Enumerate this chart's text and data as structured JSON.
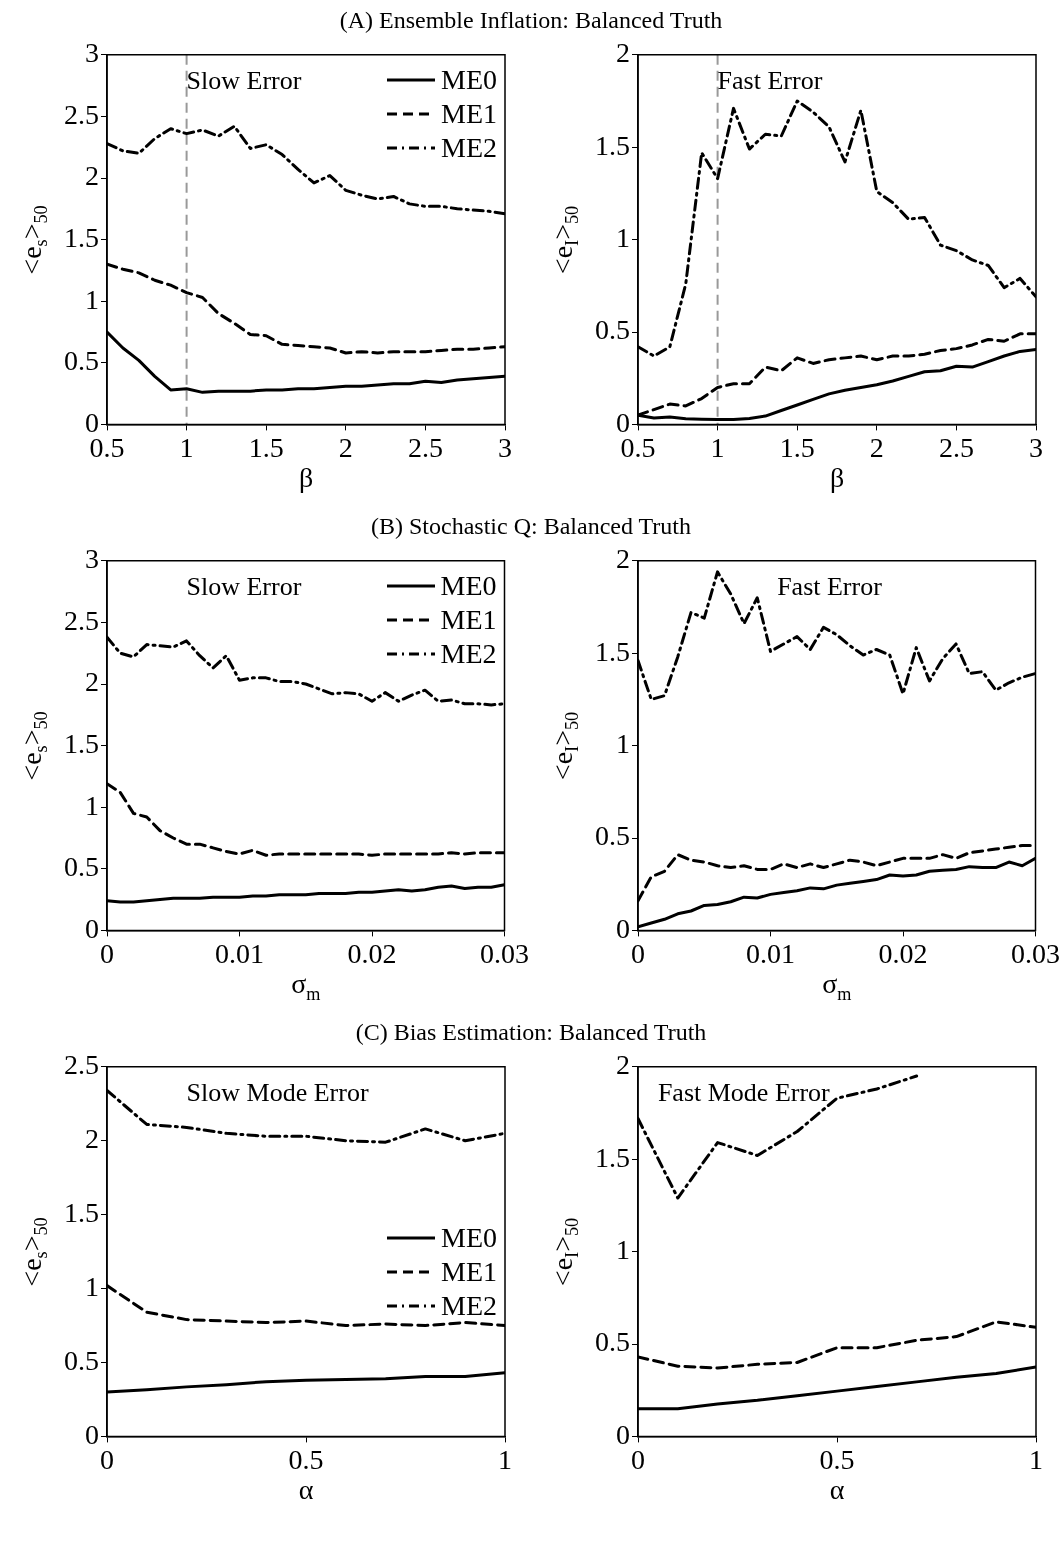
{
  "chart_data": [
    {
      "type": "line",
      "title": "(A) Ensemble Inflation: Balanced Truth",
      "xlabel": "β",
      "ylabel": "<e$_{s}$>$_{50}$",
      "annotations": [
        "Slow Error"
      ],
      "legend": "top right",
      "grid": false,
      "x": [
        0.5,
        0.6,
        0.7,
        0.8,
        0.9,
        1.0,
        1.1,
        1.2,
        1.3,
        1.4,
        1.5,
        1.6,
        1.7,
        1.8,
        1.9,
        2.0,
        2.1,
        2.2,
        2.3,
        2.4,
        2.5,
        2.6,
        2.7,
        2.8,
        2.9,
        3.0
      ],
      "xlim": [
        0.5,
        3
      ],
      "xticks": [
        0.5,
        1,
        1.5,
        2,
        2.5,
        3
      ],
      "ylim": [
        0,
        3
      ],
      "yticks": [
        0,
        0.5,
        1,
        1.5,
        2,
        2.5,
        3
      ],
      "ref_lines": [
        {
          "axis": "x",
          "value": 1,
          "color": "#999999",
          "line_style": "dashed"
        }
      ],
      "series": [
        {
          "name": "ME0",
          "color": "#000000",
          "line_style": "solid",
          "values": [
            0.75,
            0.62,
            0.52,
            0.39,
            0.28,
            0.29,
            0.26,
            0.27,
            0.27,
            0.27,
            0.28,
            0.28,
            0.29,
            0.29,
            0.3,
            0.31,
            0.31,
            0.32,
            0.33,
            0.33,
            0.35,
            0.34,
            0.36,
            0.37,
            0.38,
            0.39
          ]
        },
        {
          "name": "ME1",
          "color": "#000000",
          "line_style": "dashed",
          "values": [
            1.3,
            1.26,
            1.23,
            1.17,
            1.13,
            1.07,
            1.03,
            0.9,
            0.82,
            0.73,
            0.72,
            0.65,
            0.64,
            0.63,
            0.62,
            0.58,
            0.59,
            0.58,
            0.59,
            0.59,
            0.59,
            0.6,
            0.61,
            0.61,
            0.62,
            0.63
          ]
        },
        {
          "name": "ME2",
          "color": "#000000",
          "line_style": "dashdot",
          "values": [
            2.28,
            2.22,
            2.2,
            2.32,
            2.4,
            2.36,
            2.39,
            2.34,
            2.42,
            2.24,
            2.27,
            2.19,
            2.07,
            1.96,
            2.02,
            1.9,
            1.86,
            1.83,
            1.85,
            1.79,
            1.77,
            1.77,
            1.75,
            1.74,
            1.73,
            1.71
          ]
        }
      ]
    },
    {
      "type": "line",
      "xlabel": "β",
      "ylabel": "<e$_{I}$>$_{50}$",
      "annotations": [
        "Fast Error"
      ],
      "grid": false,
      "x": [
        0.5,
        0.6,
        0.7,
        0.8,
        0.9,
        1.0,
        1.1,
        1.2,
        1.3,
        1.4,
        1.5,
        1.6,
        1.7,
        1.8,
        1.9,
        2.0,
        2.1,
        2.2,
        2.3,
        2.4,
        2.5,
        2.6,
        2.7,
        2.8,
        2.9,
        3.0
      ],
      "xlim": [
        0.5,
        3
      ],
      "xticks": [
        0.5,
        1,
        1.5,
        2,
        2.5,
        3
      ],
      "ylim": [
        0,
        2
      ],
      "yticks": [
        0,
        0.5,
        1,
        1.5,
        2
      ],
      "ref_lines": [
        {
          "axis": "x",
          "value": 1,
          "color": "#999999",
          "line_style": "dashed"
        }
      ],
      "series": [
        {
          "color": "#000000",
          "line_style": "solid",
          "values": [
            0.05,
            0.035,
            0.04,
            0.03,
            0.028,
            0.026,
            0.026,
            0.032,
            0.045,
            0.075,
            0.105,
            0.135,
            0.165,
            0.185,
            0.2,
            0.215,
            0.235,
            0.26,
            0.285,
            0.29,
            0.315,
            0.31,
            0.34,
            0.37,
            0.395,
            0.405
          ]
        },
        {
          "color": "#000000",
          "line_style": "dashed",
          "values": [
            0.05,
            0.08,
            0.11,
            0.1,
            0.14,
            0.2,
            0.22,
            0.22,
            0.31,
            0.29,
            0.36,
            0.33,
            0.35,
            0.36,
            0.37,
            0.35,
            0.37,
            0.37,
            0.38,
            0.4,
            0.41,
            0.43,
            0.46,
            0.45,
            0.49,
            0.49
          ]
        },
        {
          "color": "#000000",
          "line_style": "dashdot",
          "values": [
            0.42,
            0.37,
            0.42,
            0.76,
            1.47,
            1.33,
            1.71,
            1.49,
            1.57,
            1.56,
            1.75,
            1.69,
            1.61,
            1.42,
            1.7,
            1.26,
            1.2,
            1.11,
            1.12,
            0.97,
            0.94,
            0.89,
            0.86,
            0.74,
            0.79,
            0.69
          ]
        }
      ]
    },
    {
      "type": "line",
      "title": "(B) Stochastic Q: Balanced Truth",
      "xlabel": "σ$_{m}$",
      "ylabel": "<e$_{s}$>$_{50}$",
      "annotations": [
        "Slow Error"
      ],
      "legend": "top right",
      "grid": false,
      "x": [
        0,
        0.001,
        0.002,
        0.003,
        0.004,
        0.005,
        0.006,
        0.007,
        0.008,
        0.009,
        0.01,
        0.011,
        0.012,
        0.013,
        0.014,
        0.015,
        0.016,
        0.017,
        0.018,
        0.019,
        0.02,
        0.021,
        0.022,
        0.023,
        0.024,
        0.025,
        0.026,
        0.027,
        0.028,
        0.029,
        0.03
      ],
      "xlim": [
        0,
        0.03
      ],
      "xticks": [
        0,
        0.01,
        0.02,
        0.03
      ],
      "ylim": [
        0,
        3
      ],
      "yticks": [
        0,
        0.5,
        1,
        1.5,
        2,
        2.5,
        3
      ],
      "series": [
        {
          "name": "ME0",
          "color": "#000000",
          "line_style": "solid",
          "values": [
            0.24,
            0.23,
            0.23,
            0.24,
            0.25,
            0.26,
            0.26,
            0.26,
            0.27,
            0.27,
            0.27,
            0.28,
            0.28,
            0.29,
            0.29,
            0.29,
            0.3,
            0.3,
            0.3,
            0.31,
            0.31,
            0.32,
            0.33,
            0.32,
            0.33,
            0.35,
            0.36,
            0.34,
            0.35,
            0.35,
            0.37
          ]
        },
        {
          "name": "ME1",
          "color": "#000000",
          "line_style": "dashed",
          "values": [
            1.19,
            1.12,
            0.95,
            0.92,
            0.81,
            0.75,
            0.7,
            0.7,
            0.67,
            0.64,
            0.62,
            0.65,
            0.61,
            0.62,
            0.62,
            0.62,
            0.62,
            0.62,
            0.62,
            0.62,
            0.61,
            0.62,
            0.62,
            0.62,
            0.62,
            0.62,
            0.63,
            0.62,
            0.63,
            0.63,
            0.63
          ]
        },
        {
          "name": "ME2",
          "color": "#000000",
          "line_style": "dashdot",
          "values": [
            2.38,
            2.25,
            2.22,
            2.32,
            2.31,
            2.3,
            2.35,
            2.23,
            2.13,
            2.23,
            2.03,
            2.05,
            2.05,
            2.02,
            2.02,
            2.0,
            1.96,
            1.92,
            1.93,
            1.92,
            1.86,
            1.93,
            1.86,
            1.91,
            1.95,
            1.86,
            1.87,
            1.84,
            1.84,
            1.83,
            1.84
          ]
        }
      ]
    },
    {
      "type": "line",
      "xlabel": "σ$_{m}$",
      "ylabel": "<e$_{I}$>$_{50}$",
      "annotations": [
        "Fast Error"
      ],
      "grid": false,
      "x": [
        0,
        0.001,
        0.002,
        0.003,
        0.004,
        0.005,
        0.006,
        0.007,
        0.008,
        0.009,
        0.01,
        0.011,
        0.012,
        0.013,
        0.014,
        0.015,
        0.016,
        0.017,
        0.018,
        0.019,
        0.02,
        0.021,
        0.022,
        0.023,
        0.024,
        0.025,
        0.026,
        0.027,
        0.028,
        0.029,
        0.03
      ],
      "xlim": [
        0,
        0.03
      ],
      "xticks": [
        0,
        0.01,
        0.02,
        0.03
      ],
      "ylim": [
        0,
        2
      ],
      "yticks": [
        0,
        0.5,
        1,
        1.5,
        2
      ],
      "series": [
        {
          "color": "#000000",
          "line_style": "solid",
          "values": [
            0.02,
            0.04,
            0.06,
            0.09,
            0.105,
            0.135,
            0.14,
            0.155,
            0.18,
            0.175,
            0.195,
            0.205,
            0.215,
            0.23,
            0.225,
            0.245,
            0.255,
            0.265,
            0.275,
            0.3,
            0.295,
            0.3,
            0.32,
            0.325,
            0.33,
            0.345,
            0.34,
            0.34,
            0.37,
            0.35,
            0.39
          ]
        },
        {
          "color": "#000000",
          "line_style": "dashed",
          "values": [
            0.16,
            0.29,
            0.32,
            0.41,
            0.38,
            0.37,
            0.35,
            0.34,
            0.35,
            0.33,
            0.33,
            0.36,
            0.34,
            0.36,
            0.34,
            0.36,
            0.38,
            0.37,
            0.35,
            0.37,
            0.39,
            0.39,
            0.39,
            0.41,
            0.39,
            0.42,
            0.43,
            0.44,
            0.45,
            0.46,
            0.46
          ]
        },
        {
          "color": "#000000",
          "line_style": "dashdot",
          "values": [
            1.46,
            1.25,
            1.27,
            1.48,
            1.72,
            1.69,
            1.94,
            1.82,
            1.66,
            1.8,
            1.51,
            1.55,
            1.59,
            1.52,
            1.64,
            1.6,
            1.54,
            1.49,
            1.52,
            1.49,
            1.28,
            1.53,
            1.35,
            1.47,
            1.55,
            1.39,
            1.4,
            1.3,
            1.34,
            1.37,
            1.39
          ]
        }
      ]
    },
    {
      "type": "line",
      "title": "(C) Bias Estimation: Balanced Truth",
      "xlabel": "α",
      "ylabel": "<e$_{s}$>$_{50}$",
      "annotations": [
        "Slow Mode Error"
      ],
      "legend": "right",
      "grid": false,
      "x": [
        0,
        0.1,
        0.2,
        0.3,
        0.4,
        0.5,
        0.6,
        0.7,
        0.8,
        0.9,
        1
      ],
      "xlim": [
        0,
        1
      ],
      "xticks": [
        0,
        0.5,
        1
      ],
      "ylim": [
        0,
        2.5
      ],
      "yticks": [
        0,
        0.5,
        1,
        1.5,
        2,
        2.5
      ],
      "series": [
        {
          "name": "ME0",
          "color": "#000000",
          "line_style": "solid",
          "values": [
            0.3,
            0.315,
            0.335,
            0.35,
            0.37,
            0.38,
            0.385,
            0.39,
            0.405,
            0.405,
            0.43
          ]
        },
        {
          "name": "ME1",
          "color": "#000000",
          "line_style": "dashed",
          "values": [
            1.02,
            0.84,
            0.79,
            0.78,
            0.77,
            0.78,
            0.75,
            0.76,
            0.75,
            0.77,
            0.75
          ]
        },
        {
          "name": "ME2",
          "color": "#000000",
          "line_style": "dashdot",
          "values": [
            2.34,
            2.11,
            2.09,
            2.05,
            2.03,
            2.03,
            2.0,
            1.99,
            2.08,
            2.0,
            2.05
          ]
        }
      ]
    },
    {
      "type": "line",
      "xlabel": "α",
      "ylabel": "<e$_{I}$>$_{50}$",
      "annotations": [
        "Fast Mode Error"
      ],
      "grid": false,
      "x": [
        0,
        0.1,
        0.2,
        0.3,
        0.4,
        0.5,
        0.6,
        0.7,
        0.8,
        0.9,
        1
      ],
      "xlim": [
        0,
        1
      ],
      "xticks": [
        0,
        0.5,
        1
      ],
      "ylim": [
        0,
        2
      ],
      "yticks": [
        0,
        0.5,
        1,
        1.5,
        2
      ],
      "series": [
        {
          "color": "#000000",
          "line_style": "solid",
          "values": [
            0.15,
            0.15,
            0.175,
            0.195,
            0.22,
            0.245,
            0.27,
            0.295,
            0.32,
            0.34,
            0.375
          ]
        },
        {
          "color": "#000000",
          "line_style": "dashed",
          "values": [
            0.43,
            0.38,
            0.37,
            0.39,
            0.4,
            0.48,
            0.48,
            0.52,
            0.54,
            0.62,
            0.59
          ]
        },
        {
          "color": "#000000",
          "line_style": "dashdot",
          "values": [
            1.72,
            1.29,
            1.59,
            1.52,
            1.65,
            1.83,
            1.88,
            1.95,
            null,
            null,
            null
          ]
        }
      ]
    }
  ]
}
